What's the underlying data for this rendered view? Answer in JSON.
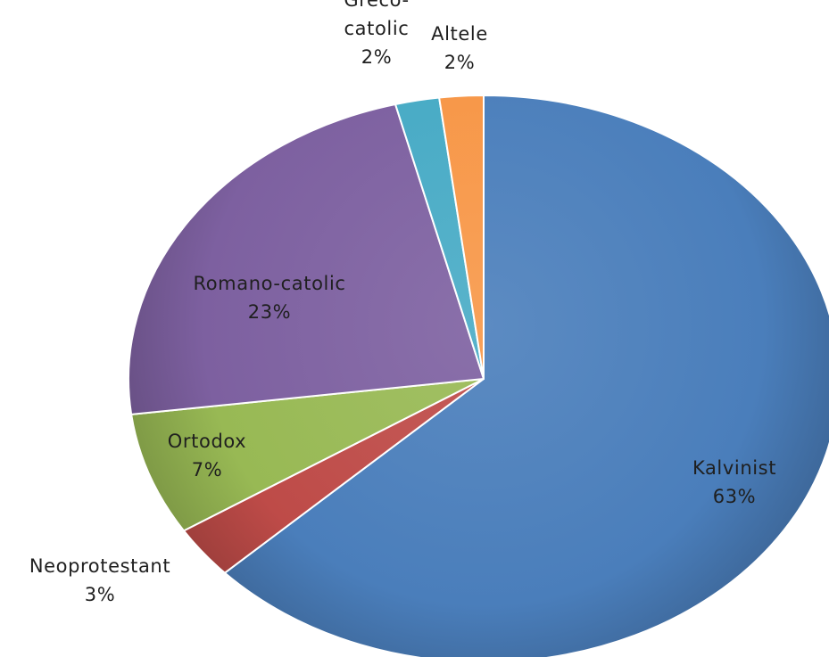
{
  "chart_data": {
    "type": "pie",
    "title": "",
    "start_angle_deg": 0,
    "direction": "clockwise",
    "style": "3d-shaded",
    "legend": "none",
    "slices": [
      {
        "category": "Kalvinist",
        "percent_label": "63%",
        "value": 63,
        "color": "#4a7ebb"
      },
      {
        "category": "Neoprotestant",
        "percent_label": "3%",
        "value": 3,
        "color": "#be4b48"
      },
      {
        "category": "Ortodox",
        "percent_label": "7%",
        "value": 7,
        "color": "#98b954"
      },
      {
        "category": "Romano-catolic",
        "percent_label": "23%",
        "value": 23,
        "color": "#7d60a0"
      },
      {
        "category": "Greco-catolic",
        "percent_label": "2%",
        "value": 2,
        "color": "#46aac5"
      },
      {
        "category": "Altele",
        "percent_label": "2%",
        "value": 2,
        "color": "#f79646"
      }
    ],
    "label_lines": [
      [
        "Kalvinist",
        "63%"
      ],
      [
        "Neoprotestant",
        "3%"
      ],
      [
        "Ortodox",
        "7%"
      ],
      [
        "Romano-catolic",
        "23%"
      ],
      [
        "Greco-",
        "catolic",
        "2%"
      ],
      [
        "Altele",
        "2%"
      ]
    ]
  }
}
